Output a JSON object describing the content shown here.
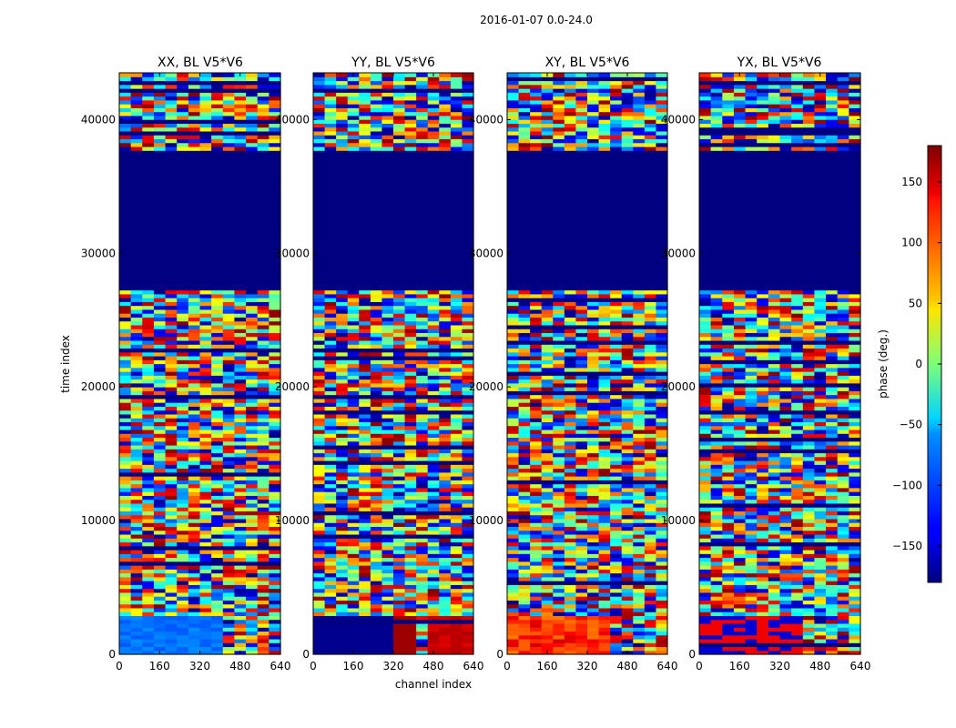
{
  "chart_data": {
    "type": "heatmap",
    "suptitle": "2016-01-07 0.0-24.0",
    "xlabel": "channel index",
    "ylabel": "time index",
    "xlim": [
      0,
      640
    ],
    "ylim": [
      0,
      43500
    ],
    "x_ticks": [
      0,
      160,
      320,
      480,
      640
    ],
    "y_ticks": [
      0,
      10000,
      20000,
      30000,
      40000
    ],
    "panels": [
      {
        "title": "XX, BL V5*V6",
        "low_band_note": "light blue band (~ -100 deg) for channels 0-400"
      },
      {
        "title": "YY, BL V5*V6",
        "low_band_note": "dark blue then dark red/red band"
      },
      {
        "title": "XY, BL V5*V6",
        "low_band_note": "red/orange band"
      },
      {
        "title": "YX, BL V5*V6",
        "low_band_note": "red/blue mixed band"
      }
    ],
    "flagged_region": {
      "time_start": 27000,
      "time_end": 37500,
      "value": -180
    },
    "colorbar": {
      "label": "phase (deg.)",
      "range": [
        -180,
        180
      ],
      "ticks": [
        -150,
        -100,
        -50,
        0,
        50,
        100,
        150
      ],
      "tick_labels": [
        "−150",
        "−100",
        "−50",
        "0",
        "50",
        "100",
        "150"
      ],
      "colormap": "jet"
    }
  }
}
